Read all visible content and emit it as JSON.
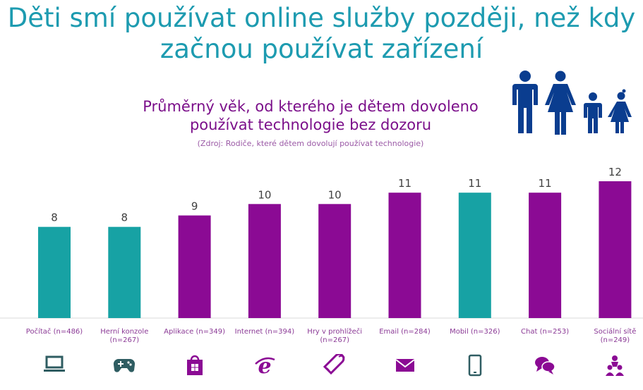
{
  "headline": {
    "line1": "Děti smí používat online služby později, než kdy",
    "line2": "začnou používat zařízení"
  },
  "chart_data": {
    "type": "bar",
    "title": "Průměrný věk, od kterého je dětem dovoleno používat technologie bez dozoru",
    "title_lines": [
      "Průměrný věk, od kterého je dětem dovoleno",
      "používat technologie bez dozoru"
    ],
    "subtitle": "(Zdroj: Rodiče, které dětem dovolují používat technologie)",
    "categories": [
      "Počítač (n=486)",
      "Herní konzole (n=267)",
      "Aplikace (n=349)",
      "Internet (n=394)",
      "Hry v prohlížeči (n=267)",
      "Email (n=284)",
      "Mobil (n=326)",
      "Chat (n=253)",
      "Sociální sítě (n=249)"
    ],
    "category_lines": [
      [
        "Počítač (n=486)"
      ],
      [
        "Herní konzole",
        "(n=267)"
      ],
      [
        "Aplikace (n=349)"
      ],
      [
        "Internet (n=394)"
      ],
      [
        "Hry v prohlížeči",
        "(n=267)"
      ],
      [
        "Email (n=284)"
      ],
      [
        "Mobil (n=326)"
      ],
      [
        "Chat (n=253)"
      ],
      [
        "Sociální sítě",
        "(n=249)"
      ]
    ],
    "values": [
      8,
      8,
      9,
      10,
      10,
      11,
      11,
      11,
      12
    ],
    "bar_colors": [
      "#17a2a4",
      "#17a2a4",
      "#8b0a94",
      "#8b0a94",
      "#8b0a94",
      "#8b0a94",
      "#17a2a4",
      "#8b0a94",
      "#8b0a94"
    ],
    "icons": [
      "laptop-icon",
      "gamepad-icon",
      "store-icon",
      "internet-explorer-icon",
      "mouse-icon",
      "mail-icon",
      "mobile-phone-icon",
      "chat-icon",
      "social-network-icon"
    ],
    "ylim": [
      0,
      12
    ],
    "grid": false,
    "legend": false
  },
  "colors": {
    "teal": "#17a2a4",
    "purple": "#8b0a94",
    "headline": "#1d9bb0",
    "family_icon": "#0a3d8f"
  }
}
